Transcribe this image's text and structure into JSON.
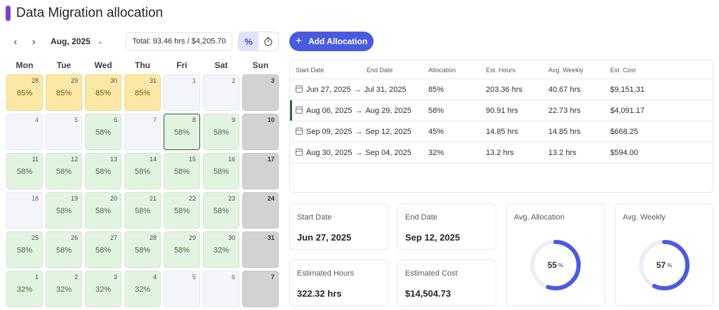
{
  "header": {
    "title": "Data Migration allocation",
    "accent_color": "#7a43c7"
  },
  "toolbar": {
    "prev_icon": "chevron-left-icon",
    "next_icon": "chevron-right-icon",
    "month": "Aug, 2025",
    "total": "Total: 93.46 hrs / $4,205.70",
    "toggle_percent": "%",
    "toggle_time_icon": "stopwatch-icon",
    "add_label": "Add Allocation",
    "add_color": "#4a5be0"
  },
  "calendar": {
    "weekdays": [
      "Mon",
      "Tue",
      "Wed",
      "Thu",
      "Fri",
      "Sat",
      "Sun"
    ],
    "days": [
      {
        "d": "28",
        "pct": "85%",
        "type": "yellow"
      },
      {
        "d": "29",
        "pct": "85%",
        "type": "yellow"
      },
      {
        "d": "30",
        "pct": "85%",
        "type": "yellow"
      },
      {
        "d": "31",
        "pct": "85%",
        "type": "yellow"
      },
      {
        "d": "1",
        "pct": "",
        "type": "plain"
      },
      {
        "d": "2",
        "pct": "",
        "type": "plain"
      },
      {
        "d": "3",
        "pct": "",
        "type": "gray"
      },
      {
        "d": "4",
        "pct": "",
        "type": "plain"
      },
      {
        "d": "5",
        "pct": "",
        "type": "plain"
      },
      {
        "d": "6",
        "pct": "58%",
        "type": "green"
      },
      {
        "d": "7",
        "pct": "",
        "type": "plain"
      },
      {
        "d": "8",
        "pct": "58%",
        "type": "green",
        "selected": true
      },
      {
        "d": "9",
        "pct": "58%",
        "type": "green"
      },
      {
        "d": "10",
        "pct": "",
        "type": "gray"
      },
      {
        "d": "11",
        "pct": "58%",
        "type": "green"
      },
      {
        "d": "12",
        "pct": "58%",
        "type": "green"
      },
      {
        "d": "13",
        "pct": "58%",
        "type": "green"
      },
      {
        "d": "14",
        "pct": "58%",
        "type": "green"
      },
      {
        "d": "15",
        "pct": "58%",
        "type": "green"
      },
      {
        "d": "16",
        "pct": "58%",
        "type": "green"
      },
      {
        "d": "17",
        "pct": "",
        "type": "gray"
      },
      {
        "d": "18",
        "pct": "",
        "type": "plain"
      },
      {
        "d": "19",
        "pct": "58%",
        "type": "green"
      },
      {
        "d": "20",
        "pct": "58%",
        "type": "green"
      },
      {
        "d": "21",
        "pct": "58%",
        "type": "green"
      },
      {
        "d": "22",
        "pct": "58%",
        "type": "green"
      },
      {
        "d": "23",
        "pct": "58%",
        "type": "green"
      },
      {
        "d": "24",
        "pct": "",
        "type": "gray"
      },
      {
        "d": "25",
        "pct": "58%",
        "type": "green"
      },
      {
        "d": "26",
        "pct": "58%",
        "type": "green"
      },
      {
        "d": "27",
        "pct": "58%",
        "type": "green"
      },
      {
        "d": "28",
        "pct": "58%",
        "type": "green"
      },
      {
        "d": "29",
        "pct": "58%",
        "type": "green"
      },
      {
        "d": "30",
        "pct": "32%",
        "type": "green"
      },
      {
        "d": "31",
        "pct": "",
        "type": "gray"
      },
      {
        "d": "1",
        "pct": "32%",
        "type": "green"
      },
      {
        "d": "2",
        "pct": "32%",
        "type": "green"
      },
      {
        "d": "3",
        "pct": "32%",
        "type": "green"
      },
      {
        "d": "4",
        "pct": "32%",
        "type": "green"
      },
      {
        "d": "5",
        "pct": "",
        "type": "plain"
      },
      {
        "d": "6",
        "pct": "",
        "type": "plain"
      },
      {
        "d": "7",
        "pct": "",
        "type": "gray"
      }
    ]
  },
  "table": {
    "headers": [
      "Start Date",
      "End Date",
      "Allocation",
      "Est. Hours",
      "Avg. Weekly",
      "Est. Cost"
    ],
    "rows": [
      {
        "start": "Jun 27, 2025",
        "end": "Jul 31, 2025",
        "allocation": "85%",
        "hours": "203.36 hrs",
        "weekly": "40.67 hrs",
        "cost": "$9,151.31",
        "active": false
      },
      {
        "start": "Aug 06, 2025",
        "end": "Aug 29, 2025",
        "allocation": "58%",
        "hours": "90.91 hrs",
        "weekly": "22.73 hrs",
        "cost": "$4,091.17",
        "active": true
      },
      {
        "start": "Sep 09, 2025",
        "end": "Sep 12, 2025",
        "allocation": "45%",
        "hours": "14.85 hrs",
        "weekly": "14.85 hrs",
        "cost": "$668.25",
        "active": false
      },
      {
        "start": "Aug 30, 2025",
        "end": "Sep 04, 2025",
        "allocation": "32%",
        "hours": "13.2 hrs",
        "weekly": "13.2 hrs",
        "cost": "$594.00",
        "active": false
      }
    ]
  },
  "summary": {
    "start_date_label": "Start Date",
    "start_date": "Jun 27, 2025",
    "end_date_label": "End Date",
    "end_date": "Sep 12, 2025",
    "hours_label": "Estimated Hours",
    "hours": "322.32 hrs",
    "cost_label": "Estimated Cost",
    "cost": "$14,504.73",
    "avg_allocation_label": "Avg. Allocation",
    "avg_allocation": "55",
    "avg_allocation_value": 55,
    "avg_weekly_label": "Avg. Weekly",
    "avg_weekly": "57",
    "avg_weekly_value": 57,
    "percent_sign": "%",
    "ring_color": "#4a5be0",
    "ring_track_color": "#edeff6"
  }
}
